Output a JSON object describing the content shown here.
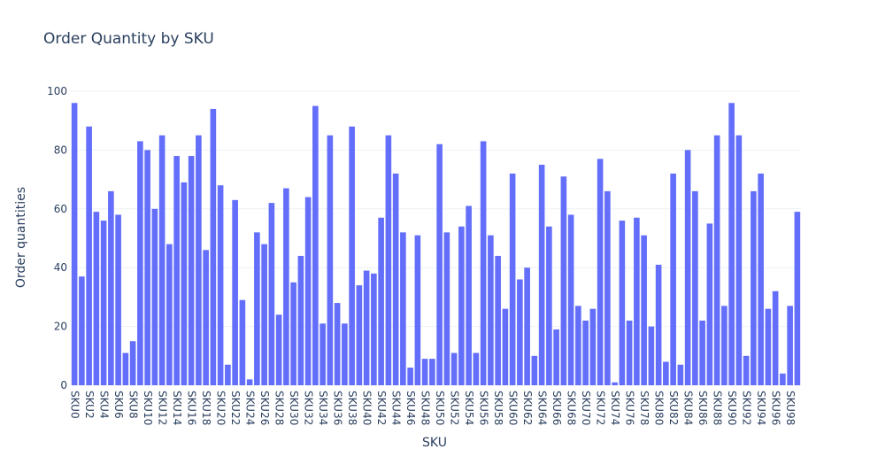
{
  "chart_data": {
    "type": "bar",
    "title": "Order Quantity by SKU",
    "xlabel": "SKU",
    "ylabel": "Order quantities",
    "ylim": [
      0,
      100
    ],
    "yticks": [
      0,
      20,
      40,
      60,
      80,
      100
    ],
    "grid": true,
    "bar_color": "#636efa",
    "categories": [
      "SKU0",
      "SKU1",
      "SKU2",
      "SKU3",
      "SKU4",
      "SKU5",
      "SKU6",
      "SKU7",
      "SKU8",
      "SKU9",
      "SKU10",
      "SKU11",
      "SKU12",
      "SKU13",
      "SKU14",
      "SKU15",
      "SKU16",
      "SKU17",
      "SKU18",
      "SKU19",
      "SKU20",
      "SKU21",
      "SKU22",
      "SKU23",
      "SKU24",
      "SKU25",
      "SKU26",
      "SKU27",
      "SKU28",
      "SKU29",
      "SKU30",
      "SKU31",
      "SKU32",
      "SKU33",
      "SKU34",
      "SKU35",
      "SKU36",
      "SKU37",
      "SKU38",
      "SKU39",
      "SKU40",
      "SKU41",
      "SKU42",
      "SKU43",
      "SKU44",
      "SKU45",
      "SKU46",
      "SKU47",
      "SKU48",
      "SKU49",
      "SKU50",
      "SKU51",
      "SKU52",
      "SKU53",
      "SKU54",
      "SKU55",
      "SKU56",
      "SKU57",
      "SKU58",
      "SKU59",
      "SKU60",
      "SKU61",
      "SKU62",
      "SKU63",
      "SKU64",
      "SKU65",
      "SKU66",
      "SKU67",
      "SKU68",
      "SKU69",
      "SKU70",
      "SKU71",
      "SKU72",
      "SKU73",
      "SKU74",
      "SKU75",
      "SKU76",
      "SKU77",
      "SKU78",
      "SKU79",
      "SKU80",
      "SKU81",
      "SKU82",
      "SKU83",
      "SKU84",
      "SKU85",
      "SKU86",
      "SKU87",
      "SKU88",
      "SKU89",
      "SKU90",
      "SKU91",
      "SKU92",
      "SKU93",
      "SKU94",
      "SKU95",
      "SKU96",
      "SKU97",
      "SKU98",
      "SKU99"
    ],
    "values": [
      96,
      37,
      88,
      59,
      56,
      66,
      58,
      11,
      15,
      83,
      80,
      60,
      85,
      48,
      78,
      69,
      78,
      85,
      46,
      94,
      68,
      7,
      63,
      29,
      2,
      52,
      48,
      62,
      24,
      67,
      35,
      44,
      64,
      95,
      21,
      85,
      28,
      21,
      88,
      34,
      39,
      38,
      57,
      85,
      72,
      52,
      6,
      51,
      9,
      9,
      82,
      52,
      11,
      54,
      61,
      11,
      83,
      51,
      44,
      26,
      72,
      36,
      40,
      10,
      75,
      54,
      19,
      71,
      58,
      27,
      22,
      26,
      77,
      66,
      1,
      56,
      22,
      57,
      51,
      20,
      41,
      8,
      72,
      7,
      80,
      66,
      22,
      55,
      85,
      27,
      96,
      85,
      10,
      66,
      72,
      26,
      32,
      4,
      27,
      59
    ]
  }
}
